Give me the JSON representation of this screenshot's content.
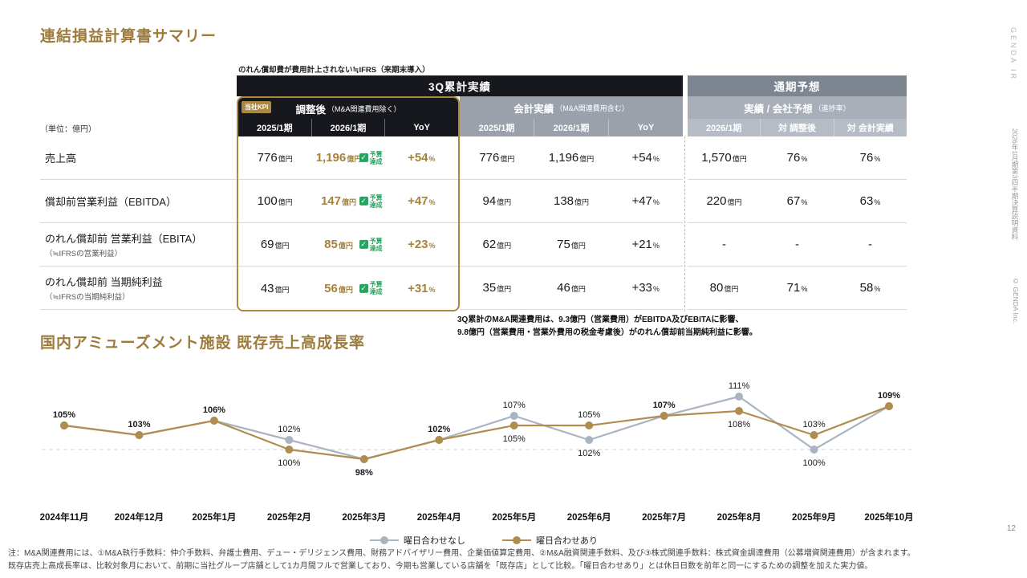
{
  "meta": {
    "brand_vertical": "GENDA IR",
    "doc_vertical": "2026年1月期第3四半期決算説明資料",
    "copyright_vertical": "© GENDA Inc.",
    "page_number": "12"
  },
  "colors": {
    "accent_gold": "#9c7b3c",
    "header_black": "#16181d",
    "forecast_bar_gray": "#7d8591",
    "accounting_gray": "#9aa1ab",
    "forecast_subheader_gray": "#a9afb9",
    "achieved_green": "#27a45f",
    "series_no_adjust_gray": "#a9b4c0",
    "series_adjust_gold": "#b08d4f"
  },
  "section1": {
    "title": "連結損益計算書サマリー",
    "unit_label": "（単位：億円）",
    "note_top": "のれん償却費が費用計上されない≒IFRS（来期末導入）",
    "note_bottom_line1": "3Q累計のM&A関連費用は、9.3億円（営業費用）がEBITDA及びEBITAに影響、",
    "note_bottom_line2": "9.8億円（営業費用・営業外費用の税金考慮後）がのれん償却前当期純利益に影響。",
    "table": {
      "group_3q_label": "3Q累計実績",
      "group_forecast_label": "通期予想",
      "adjusted": {
        "kpi_badge": "当社KPI",
        "title": "調整後",
        "title_suffix": "（M&A関連費用除く）",
        "cols": [
          "2025/1期",
          "2026/1期",
          "YoY"
        ]
      },
      "accounting": {
        "title": "会計実績",
        "title_suffix": "（M&A関連費用含む）",
        "cols": [
          "2025/1期",
          "2026/1期",
          "YoY"
        ]
      },
      "forecast": {
        "title": "実績 / 会社予想",
        "title_suffix": "（進捗率）",
        "cols": [
          "2026/1期",
          "対 調整後",
          "対 会計実績"
        ]
      },
      "badge_achieved": {
        "label": "予算達成",
        "icon": "✓"
      },
      "rows": [
        {
          "label": "売上高",
          "sublabel": "",
          "adjusted": [
            {
              "v": "776",
              "u": "億円"
            },
            {
              "v": "1,196",
              "u": "億円",
              "badge": true
            },
            {
              "v": "+54",
              "u": "%"
            }
          ],
          "accounting": [
            {
              "v": "776",
              "u": "億円"
            },
            {
              "v": "1,196",
              "u": "億円"
            },
            {
              "v": "+54",
              "u": "%"
            }
          ],
          "forecast": [
            {
              "v": "1,570",
              "u": "億円"
            },
            {
              "v": "76",
              "u": "%"
            },
            {
              "v": "76",
              "u": "%"
            }
          ]
        },
        {
          "label": "償却前営業利益（EBITDA）",
          "sublabel": "",
          "adjusted": [
            {
              "v": "100",
              "u": "億円"
            },
            {
              "v": "147",
              "u": "億円",
              "badge": true
            },
            {
              "v": "+47",
              "u": "%"
            }
          ],
          "accounting": [
            {
              "v": "94",
              "u": "億円"
            },
            {
              "v": "138",
              "u": "億円"
            },
            {
              "v": "+47",
              "u": "%"
            }
          ],
          "forecast": [
            {
              "v": "220",
              "u": "億円"
            },
            {
              "v": "67",
              "u": "%"
            },
            {
              "v": "63",
              "u": "%"
            }
          ]
        },
        {
          "label": "のれん償却前 営業利益（EBITA）",
          "sublabel": "（≒IFRSの営業利益）",
          "adjusted": [
            {
              "v": "69",
              "u": "億円"
            },
            {
              "v": "85",
              "u": "億円",
              "badge": true
            },
            {
              "v": "+23",
              "u": "%"
            }
          ],
          "accounting": [
            {
              "v": "62",
              "u": "億円"
            },
            {
              "v": "75",
              "u": "億円"
            },
            {
              "v": "+21",
              "u": "%"
            }
          ],
          "forecast": [
            {
              "v": "-",
              "u": ""
            },
            {
              "v": "-",
              "u": ""
            },
            {
              "v": "-",
              "u": ""
            }
          ]
        },
        {
          "label": "のれん償却前 当期純利益",
          "sublabel": "（≒IFRSの当期純利益）",
          "adjusted": [
            {
              "v": "43",
              "u": "億円"
            },
            {
              "v": "56",
              "u": "億円",
              "badge": true
            },
            {
              "v": "+31",
              "u": "%"
            }
          ],
          "accounting": [
            {
              "v": "35",
              "u": "億円"
            },
            {
              "v": "46",
              "u": "億円"
            },
            {
              "v": "+33",
              "u": "%"
            }
          ],
          "forecast": [
            {
              "v": "80",
              "u": "億円"
            },
            {
              "v": "71",
              "u": "%"
            },
            {
              "v": "58",
              "u": "%"
            }
          ]
        }
      ]
    }
  },
  "chart_data": {
    "type": "line",
    "title": "国内アミューズメント施設 既存売上高成長率",
    "categories": [
      "2024年11月",
      "2024年12月",
      "2025年1月",
      "2025年2月",
      "2025年3月",
      "2025年4月",
      "2025年5月",
      "2025年6月",
      "2025年7月",
      "2025年8月",
      "2025年9月",
      "2025年10月"
    ],
    "series": [
      {
        "name": "曜日合わせなし",
        "color": "#a9b4c0",
        "values": [
          105,
          103,
          106,
          102,
          98,
          102,
          107,
          102,
          107,
          111,
          100,
          109
        ]
      },
      {
        "name": "曜日合わせあり",
        "color": "#b08d4f",
        "values": [
          105,
          103,
          106,
          100,
          98,
          102,
          105,
          105,
          107,
          108,
          103,
          109
        ]
      }
    ],
    "baseline": 100,
    "unit": "%",
    "ylim": [
      95,
      114
    ],
    "grid": false,
    "legend_position": "bottom",
    "point_labels": [
      [
        {
          "text": "105%",
          "pos": "above",
          "bold": true
        }
      ],
      [
        {
          "text": "103%",
          "pos": "above",
          "bold": true
        }
      ],
      [
        {
          "text": "106%",
          "pos": "above",
          "bold": true
        }
      ],
      [
        {
          "text": "102%",
          "pos": "above",
          "bold": false
        },
        {
          "text": "100%",
          "pos": "below",
          "bold": false
        }
      ],
      [
        {
          "text": "98%",
          "pos": "below",
          "bold": true
        }
      ],
      [
        {
          "text": "102%",
          "pos": "above",
          "bold": true
        }
      ],
      [
        {
          "text": "107%",
          "pos": "above",
          "bold": false
        },
        {
          "text": "105%",
          "pos": "below",
          "bold": false
        }
      ],
      [
        {
          "text": "105%",
          "pos": "above",
          "bold": false
        },
        {
          "text": "102%",
          "pos": "below",
          "bold": false
        }
      ],
      [
        {
          "text": "107%",
          "pos": "above",
          "bold": true
        }
      ],
      [
        {
          "text": "111%",
          "pos": "above",
          "bold": false
        },
        {
          "text": "108%",
          "pos": "below",
          "bold": false
        }
      ],
      [
        {
          "text": "103%",
          "pos": "above",
          "bold": false
        },
        {
          "text": "100%",
          "pos": "below",
          "bold": false
        }
      ],
      [
        {
          "text": "109%",
          "pos": "above",
          "bold": true
        }
      ]
    ]
  },
  "notes": {
    "line1": "注：M&A関連費用には、①M&A執行手数料：仲介手数料、弁護士費用、デュー・デリジェンス費用、財務アドバイザリー費用、企業価値算定費用、②M&A融資関連手数料、及び③株式関連手数料：株式資金調達費用（公募増資関連費用）が含まれます。",
    "line2": "既存店売上高成長率は、比較対象月において、前期に当社グループ店舗として1カ月間フルで営業しており、今期も営業している店舗を「既存店」として比較。「曜日合わせあり」とは休日日数を前年と同一にするための調整を加えた実力値。"
  }
}
